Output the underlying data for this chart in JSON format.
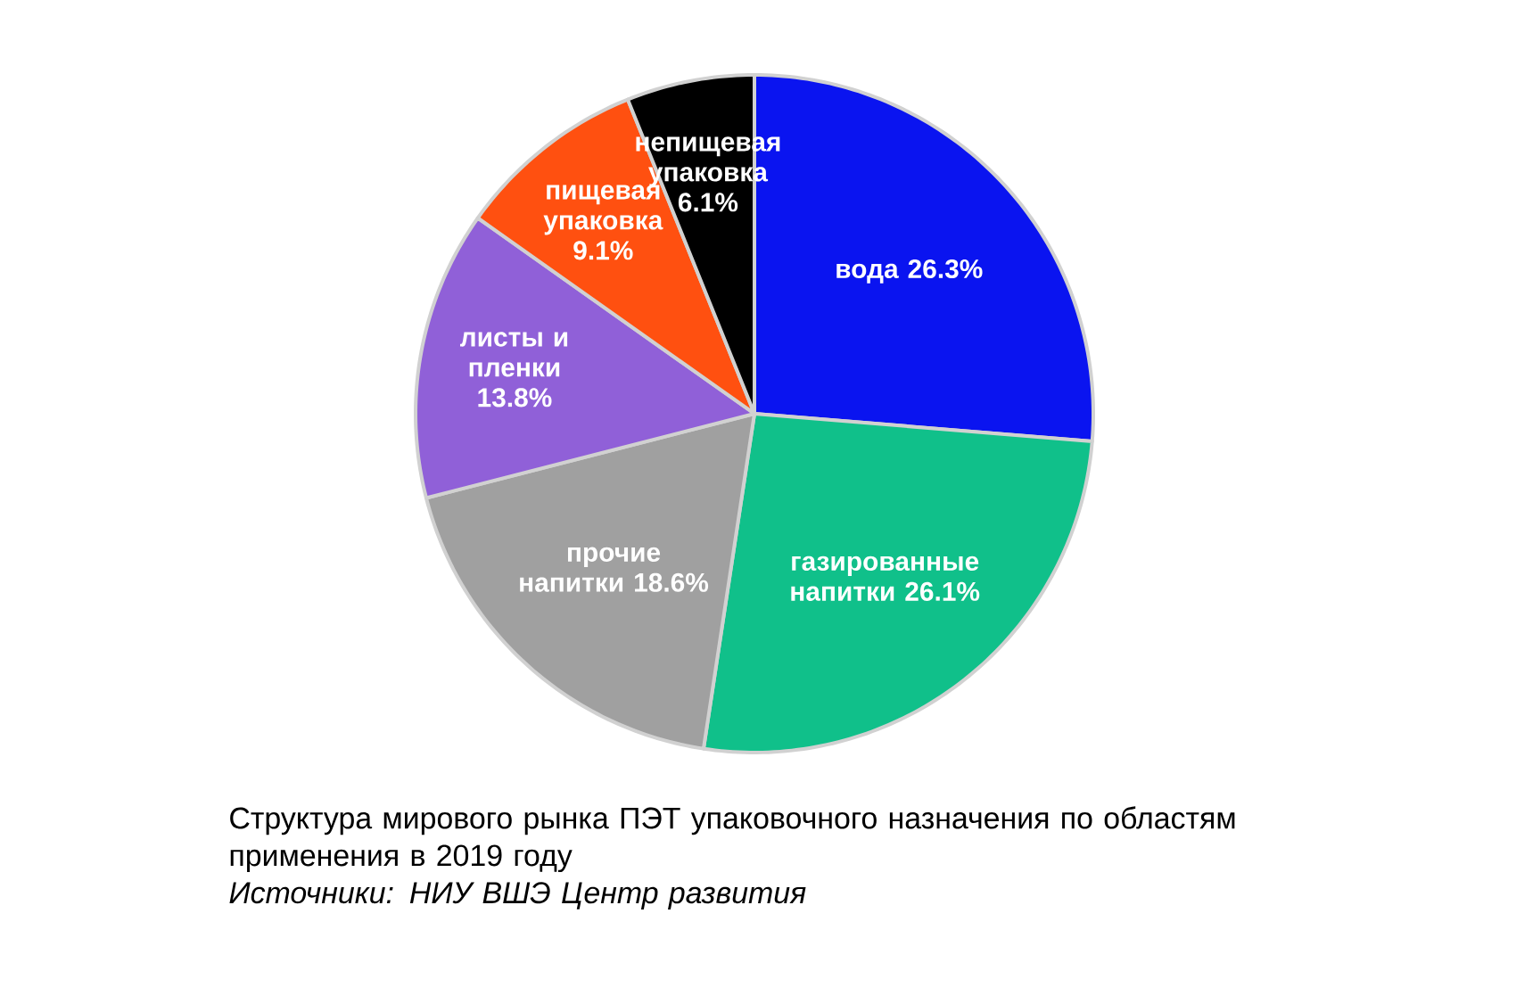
{
  "chart_data": {
    "type": "pie",
    "title": "Структура мирового рынка ПЭТ упаковочного назначения по областям применения в 2019 году",
    "annotations": [
      "*Источники: НИУ ВШЭ Центр развития*"
    ],
    "categories": [
      "вода",
      "газированные напитки",
      "прочие напитки",
      "листы и пленки",
      "пищевая упаковка",
      "непищевая упаковка"
    ],
    "values": [
      26.3,
      26.1,
      18.6,
      13.8,
      9.1,
      6.1
    ],
    "value_labels": [
      "26.3%",
      "26.1%",
      "18.6%",
      "13.8%",
      "9.1%",
      "6.1%"
    ],
    "colors": [
      "#0a14f0",
      "#10c08a",
      "#a0a0a0",
      "#9060d8",
      "#ff5010",
      "#000000"
    ]
  }
}
